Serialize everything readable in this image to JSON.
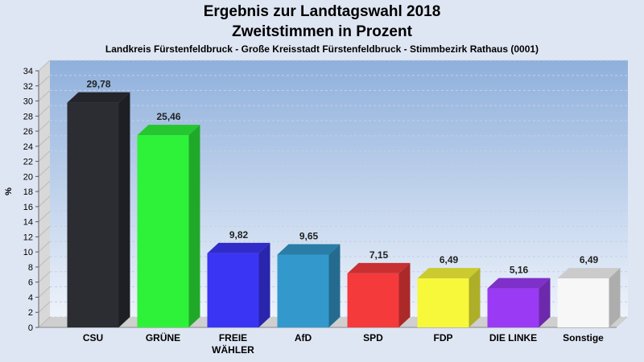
{
  "chart_data": {
    "type": "bar",
    "title": "Ergebnis zur Landtagswahl 2018",
    "subtitle": "Zweitstimmen in Prozent",
    "caption": "Landkreis Fürstenfeldbruck - Große Kreisstadt Fürstenfeldbruck - Stimmbezirk Rathaus (0001)",
    "ylabel": "%",
    "ylim": [
      0,
      34
    ],
    "ytick_step": 2,
    "categories": [
      "CSU",
      "GRÜNE",
      "FREIE WÄHLER",
      "AfD",
      "SPD",
      "FDP",
      "DIE LINKE",
      "Sonstige"
    ],
    "category_lines": [
      [
        "CSU"
      ],
      [
        "GRÜNE"
      ],
      [
        "FREIE",
        "WÄHLER"
      ],
      [
        "AfD"
      ],
      [
        "SPD"
      ],
      [
        "FDP"
      ],
      [
        "DIE LINKE"
      ],
      [
        "Sonstige"
      ]
    ],
    "values": [
      29.78,
      25.46,
      9.82,
      9.65,
      7.15,
      6.49,
      5.16,
      6.49
    ],
    "value_labels": [
      "29,78",
      "25,46",
      "9,82",
      "9,65",
      "7,15",
      "6,49",
      "5,16",
      "6,49"
    ],
    "colors": [
      "#2b2d33",
      "#2ef23a",
      "#3a35f5",
      "#3399cc",
      "#f53a3c",
      "#f8f83a",
      "#9a3af5",
      "#f7f7f7"
    ],
    "grid": true
  }
}
